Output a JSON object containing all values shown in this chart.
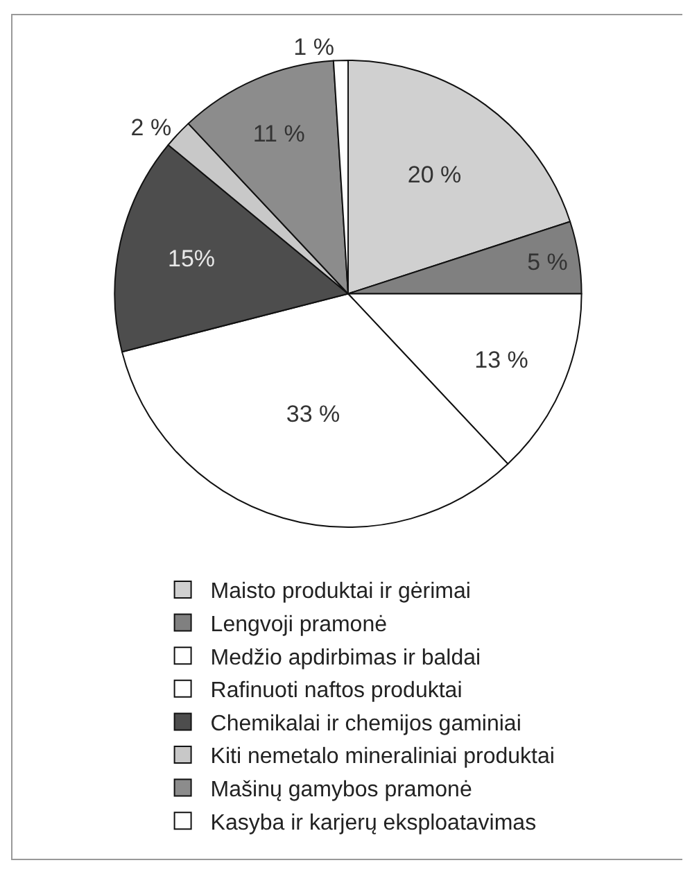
{
  "chart_data": {
    "type": "pie",
    "categories": [
      "Maisto produktai ir gėrimai",
      "Lengvoji pramonė",
      "Medžio apdirbimas ir baldai",
      "Rafinuoti naftos produktai",
      "Chemikalai ir chemijos gaminiai",
      "Kiti nemetalo mineraliniai produktai",
      "Mašinų gamybos pramonė",
      "Kasyba ir karjerų eksploatavimas"
    ],
    "values": [
      20,
      5,
      13,
      33,
      15,
      2,
      11,
      1
    ],
    "value_labels": [
      "20 %",
      "5 %",
      "13 %",
      "33 %",
      "15%",
      "2 %",
      "11 %",
      "1 %"
    ],
    "colors": [
      "#d0d0d0",
      "#808080",
      "#ffffff",
      "#ffffff",
      "#4d4d4d",
      "#c8c8c8",
      "#8c8c8c",
      "#ffffff"
    ],
    "legend": "bottom"
  }
}
